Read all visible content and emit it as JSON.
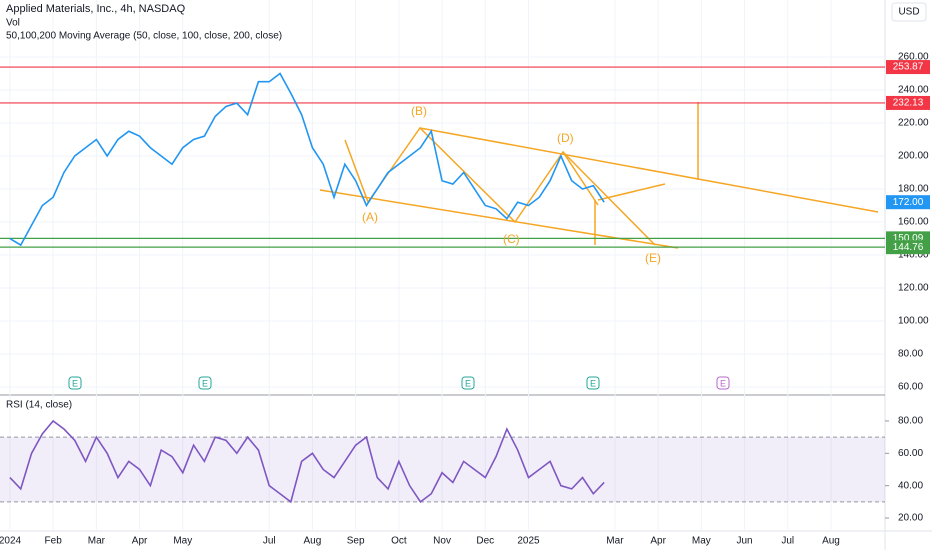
{
  "chart_data": [
    {
      "type": "line",
      "title": "Applied Materials, Inc., 4h, NASDAQ",
      "indicators": [
        "Vol",
        "50,100,200 Moving Average (50, close, 100, close, 200, close)"
      ],
      "currency": "USD",
      "x": [
        0,
        0.25,
        0.5,
        0.75,
        1,
        1.25,
        1.5,
        1.75,
        2,
        2.25,
        2.5,
        2.75,
        3,
        3.25,
        3.5,
        3.75,
        4,
        4.25,
        4.5,
        4.75,
        5,
        5.25,
        5.5,
        5.75,
        6,
        6.25,
        6.5,
        6.75,
        7,
        7.25,
        7.5,
        7.75,
        8,
        8.25,
        8.5,
        8.75,
        9,
        9.25,
        9.5,
        9.75,
        10,
        10.25,
        10.5,
        10.75,
        11,
        11.25,
        11.5,
        11.75,
        12,
        12.25,
        12.5,
        12.75,
        13,
        13.25,
        13.5,
        13.75
      ],
      "values": [
        150,
        146,
        158,
        170,
        175,
        190,
        200,
        205,
        210,
        200,
        210,
        215,
        212,
        205,
        200,
        195,
        205,
        210,
        212,
        224,
        230,
        232,
        225,
        245,
        245,
        250,
        238,
        225,
        205,
        195,
        175,
        195,
        185,
        170,
        180,
        190,
        195,
        200,
        205,
        215,
        185,
        183,
        190,
        180,
        170,
        168,
        162,
        172,
        170,
        175,
        185,
        200,
        185,
        180,
        182,
        172
      ],
      "color": "#2196f3",
      "xlim": [
        -0.23,
        20.25
      ],
      "xticks": [
        {
          "value": 0,
          "label": "2024"
        },
        {
          "value": 1,
          "label": "Feb"
        },
        {
          "value": 2,
          "label": "Mar"
        },
        {
          "value": 3,
          "label": "Apr"
        },
        {
          "value": 4,
          "label": "May"
        },
        {
          "value": 6,
          "label": "Jul"
        },
        {
          "value": 7,
          "label": "Aug"
        },
        {
          "value": 8,
          "label": "Sep"
        },
        {
          "value": 9,
          "label": "Oct"
        },
        {
          "value": 10,
          "label": "Nov"
        },
        {
          "value": 11,
          "label": "Dec"
        },
        {
          "value": 12,
          "label": "2025"
        },
        {
          "value": 14,
          "label": "Mar"
        },
        {
          "value": 15,
          "label": "Apr"
        },
        {
          "value": 16,
          "label": "May"
        },
        {
          "value": 17,
          "label": "Jun"
        },
        {
          "value": 18,
          "label": "Jul"
        },
        {
          "value": 19,
          "label": "Aug"
        }
      ],
      "ylim": [
        56.4,
        294.5
      ],
      "yticks": [
        {
          "value": 60,
          "label": "60.00"
        },
        {
          "value": 80,
          "label": "80.00"
        },
        {
          "value": 100,
          "label": "100.00"
        },
        {
          "value": 120,
          "label": "120.00"
        },
        {
          "value": 140,
          "label": "140.00"
        },
        {
          "value": 160,
          "label": "160.00"
        },
        {
          "value": 180,
          "label": "180.00"
        },
        {
          "value": 200,
          "label": "200.00"
        },
        {
          "value": 220,
          "label": "220.00"
        },
        {
          "value": 240,
          "label": "240.00"
        },
        {
          "value": 260,
          "label": "260.00"
        }
      ],
      "levels": [
        {
          "value": 253.87,
          "label": "253.87",
          "color": "#f23645"
        },
        {
          "value": 232.13,
          "label": "232.13",
          "color": "#f23645"
        },
        {
          "value": 150.09,
          "label": "150.09",
          "color": "#43a047"
        },
        {
          "value": 144.76,
          "label": "144.76",
          "color": "#43a047"
        }
      ],
      "last_price": {
        "value": 172,
        "label": "172.00"
      },
      "annotations": [
        "(A)",
        "(B)",
        "(C)",
        "(D)",
        "(E)"
      ],
      "earnings_markers": [
        "E",
        "E",
        "E",
        "E",
        "E"
      ]
    },
    {
      "type": "line",
      "title": "RSI (14, close)",
      "x": [
        0,
        0.25,
        0.5,
        0.75,
        1,
        1.25,
        1.5,
        1.75,
        2,
        2.25,
        2.5,
        2.75,
        3,
        3.25,
        3.5,
        3.75,
        4,
        4.25,
        4.5,
        4.75,
        5,
        5.25,
        5.5,
        5.75,
        6,
        6.25,
        6.5,
        6.75,
        7,
        7.25,
        7.5,
        7.75,
        8,
        8.25,
        8.5,
        8.75,
        9,
        9.25,
        9.5,
        9.75,
        10,
        10.25,
        10.5,
        10.75,
        11,
        11.25,
        11.5,
        11.75,
        12,
        12.25,
        12.5,
        12.75,
        13,
        13.25,
        13.5,
        13.75
      ],
      "values": [
        45,
        38,
        60,
        72,
        80,
        75,
        68,
        55,
        70,
        60,
        45,
        55,
        50,
        40,
        62,
        58,
        48,
        65,
        55,
        70,
        68,
        60,
        70,
        62,
        40,
        35,
        30,
        55,
        60,
        50,
        45,
        55,
        65,
        70,
        45,
        38,
        55,
        40,
        30,
        35,
        48,
        42,
        55,
        50,
        45,
        58,
        75,
        62,
        45,
        50,
        55,
        40,
        38,
        45,
        35,
        42
      ],
      "color": "#7e57c2",
      "ylim": [
        12.6,
        94.8
      ],
      "yticks": [
        {
          "value": 20,
          "label": "20.00"
        },
        {
          "value": 40,
          "label": "40.00"
        },
        {
          "value": 60,
          "label": "60.00"
        },
        {
          "value": 80,
          "label": "80.00"
        }
      ],
      "band": [
        30,
        70
      ]
    }
  ]
}
